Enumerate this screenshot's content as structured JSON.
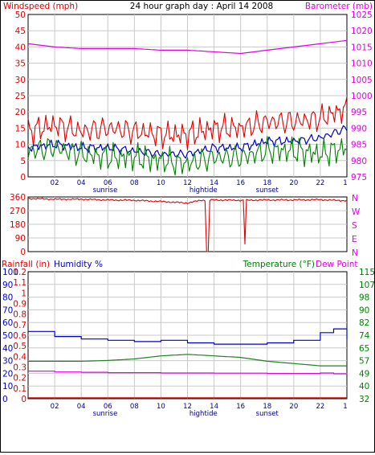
{
  "header": {
    "left": "Windspeed (mph)",
    "center": "24 hour graph day : April 14 2008",
    "right": "Barometer (mb)"
  },
  "colors": {
    "wind": "#e00000",
    "wind_avg": "#0000c8",
    "wind_gust": "#008000",
    "barometer": "#e000e0",
    "humidity": "#0000c8",
    "temperature": "#208020",
    "dewpoint": "#e000e0",
    "rain": "#e00000",
    "grid": "#c8c8c8",
    "hour_labels": "#000080",
    "left_axis": "#e00000",
    "right_axis": "#e000e0",
    "temp_axis": "#008000"
  },
  "x_axis": {
    "hour_labels": [
      "02",
      "04",
      "06",
      "08",
      "10",
      "12",
      "14",
      "16",
      "18",
      "20",
      "22",
      "1"
    ],
    "events": [
      "sunrise",
      "hightide",
      "sunset"
    ]
  },
  "chart_data": [
    {
      "type": "line",
      "title": "24 hour graph day : April 14 2008",
      "xlabel": "",
      "ylabel": "Windspeed (mph)",
      "y2label": "Barometer (mb)",
      "x_hours": [
        0,
        2,
        4,
        6,
        8,
        10,
        12,
        14,
        16,
        18,
        20,
        22,
        24
      ],
      "ylim": [
        0,
        50
      ],
      "y2lim": [
        975,
        1025
      ],
      "yticks": [
        "0",
        "5",
        "10",
        "15",
        "20",
        "25",
        "30",
        "35",
        "40",
        "45",
        "50"
      ],
      "y2ticks": [
        "975",
        "980",
        "985",
        "990",
        "995",
        "1000",
        "1005",
        "1010",
        "1015",
        "1020",
        "1025"
      ],
      "series": [
        {
          "values": [
            14,
            16,
            14,
            15,
            14,
            13,
            13,
            15,
            15,
            17,
            17,
            18,
            21
          ]
        },
        {
          "values": [
            9,
            10,
            9,
            9,
            8,
            7,
            7,
            9,
            9,
            11,
            11,
            12,
            15
          ]
        },
        {
          "values": [
            8,
            9,
            7,
            6,
            6,
            5,
            4,
            6,
            6,
            8,
            8,
            7,
            9
          ]
        },
        {
          "axis": "y2",
          "values": [
            1016,
            1015,
            1014.5,
            1014.5,
            1014.5,
            1014,
            1014,
            1013.5,
            1013,
            1014,
            1015,
            1016,
            1017
          ]
        }
      ]
    },
    {
      "type": "line",
      "yticks_deg": [
        "360",
        "270",
        "180",
        "90",
        "0"
      ],
      "yticks_dir": [
        "N",
        "W",
        "S",
        "E",
        "N"
      ],
      "ylim": [
        0,
        360
      ],
      "x_hours": [
        0,
        2,
        4,
        6,
        8,
        10,
        12,
        13,
        14,
        16,
        18,
        20,
        22,
        24
      ],
      "series": [
        {
          "values": [
            350,
            345,
            345,
            340,
            338,
            330,
            320,
            338,
            340,
            338,
            340,
            340,
            342,
            335
          ]
        }
      ],
      "dips": [
        {
          "hour": 13.5,
          "value": 0
        },
        {
          "hour": 16.3,
          "value": 50
        }
      ]
    },
    {
      "type": "line",
      "labels": {
        "rain": "Rainfall (in)",
        "humidity": "Humidity %",
        "temperature": "Temperature (°F)",
        "dewpoint": "Dew Point"
      },
      "rain_ticks": [
        "0",
        "0.1",
        "0.2",
        "0.3",
        "0.4",
        "0.5",
        "0.6",
        "0.7",
        "0.8",
        "0.9",
        "1",
        "1.1",
        "1.2"
      ],
      "humidity_ticks": [
        "0",
        "10",
        "20",
        "30",
        "40",
        "50",
        "60",
        "70",
        "80",
        "90",
        "100"
      ],
      "temp_ticks": [
        "32",
        "40",
        "49",
        "57",
        "65",
        "74",
        "82",
        "90",
        "98",
        "107",
        "115"
      ],
      "ylim": [
        0,
        100
      ],
      "x_hours": [
        0,
        2,
        4,
        6,
        8,
        10,
        12,
        14,
        16,
        18,
        20,
        22,
        23,
        24
      ],
      "series": [
        {
          "axis": "humidity",
          "values": [
            53,
            49,
            47,
            46,
            45,
            46,
            44,
            43,
            43,
            44,
            46,
            52,
            55,
            47
          ]
        },
        {
          "axis": "temperature",
          "values": [
            56.5,
            56.5,
            56.5,
            57,
            58,
            60,
            61,
            60,
            59,
            56.5,
            55,
            53.5,
            53.5,
            53.5
          ]
        },
        {
          "axis": "temperature",
          "values": [
            50,
            49.5,
            49.3,
            49,
            49,
            48.8,
            48.8,
            48.7,
            48.7,
            48.5,
            48.5,
            48.8,
            48.3,
            48
          ]
        },
        {
          "axis": "rain",
          "values": [
            0,
            0,
            0,
            0,
            0,
            0,
            0,
            0,
            0,
            0,
            0,
            0,
            0,
            0
          ]
        }
      ]
    }
  ]
}
